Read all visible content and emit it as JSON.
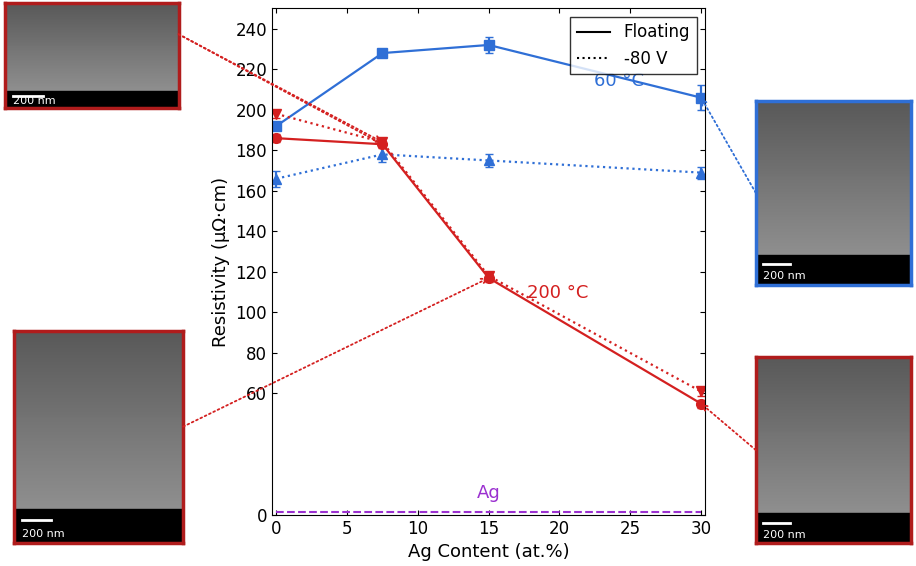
{
  "chart_data": {
    "type": "line",
    "x_label": "Ag Content (at.%)",
    "y_label": "Resistivity (µΩ·cm)",
    "x": [
      0,
      7.5,
      15,
      30
    ],
    "xlim": [
      -0.3,
      30.3
    ],
    "xticks": [
      0,
      5,
      10,
      15,
      20,
      25,
      30
    ],
    "ylim": [
      0,
      250
    ],
    "yticks": [
      0,
      60,
      80,
      100,
      120,
      140,
      160,
      180,
      200,
      220,
      240
    ],
    "legend": "upper right",
    "legend_entries": [
      {
        "name": "Floating",
        "line_style": "solid"
      },
      {
        "name": "-80 V",
        "line_style": "dotted"
      }
    ],
    "series": [
      {
        "group": "60 °C",
        "condition": "Floating",
        "color": "#2f6fd6",
        "marker": "square",
        "line_style": "solid",
        "values": [
          192,
          228,
          232,
          206
        ],
        "errors": [
          2,
          1.5,
          4,
          6
        ]
      },
      {
        "group": "60 °C",
        "condition": "-80 V",
        "color": "#2f6fd6",
        "marker": "triangle_up",
        "line_style": "dotted",
        "values": [
          166,
          178,
          175,
          169
        ],
        "errors": [
          4,
          4,
          3,
          3
        ]
      },
      {
        "group": "200 °C",
        "condition": "Floating",
        "color": "#d42020",
        "marker": "circle",
        "line_style": "solid",
        "values": [
          186,
          183,
          117,
          55
        ],
        "errors": [
          2,
          2,
          2,
          2
        ]
      },
      {
        "group": "200 °C",
        "condition": "-80 V",
        "color": "#d42020",
        "marker": "triangle_down",
        "line_style": "dotted",
        "values": [
          198,
          184,
          118,
          61
        ],
        "errors": [
          2,
          2,
          2,
          2
        ]
      },
      {
        "group": "Ag",
        "type": "hline",
        "color": "#9b30d0",
        "line_style": "dashed",
        "value": 1.6
      }
    ],
    "labels": [
      {
        "text": "60 °C",
        "color": "#2f6fd6"
      },
      {
        "text": "200 °C",
        "color": "#d42020"
      },
      {
        "text": "Ag",
        "color": "#9b30d0"
      }
    ],
    "insets": [
      {
        "label": "200 nm",
        "color": "#b01c1c",
        "links": [
          {
            "series": 2,
            "x": 7.5
          },
          {
            "series": 3,
            "x": 7.5
          }
        ]
      },
      {
        "label": "200 nm",
        "color": "#b01c1c",
        "links": [
          {
            "series": 2,
            "x": 15
          }
        ]
      },
      {
        "label": "200 nm",
        "color": "#2f6fd6",
        "links": [
          {
            "series": 0,
            "x": 30
          }
        ]
      },
      {
        "label": "200 nm",
        "color": "#b01c1c",
        "links": [
          {
            "series": 2,
            "x": 30
          }
        ]
      }
    ]
  }
}
